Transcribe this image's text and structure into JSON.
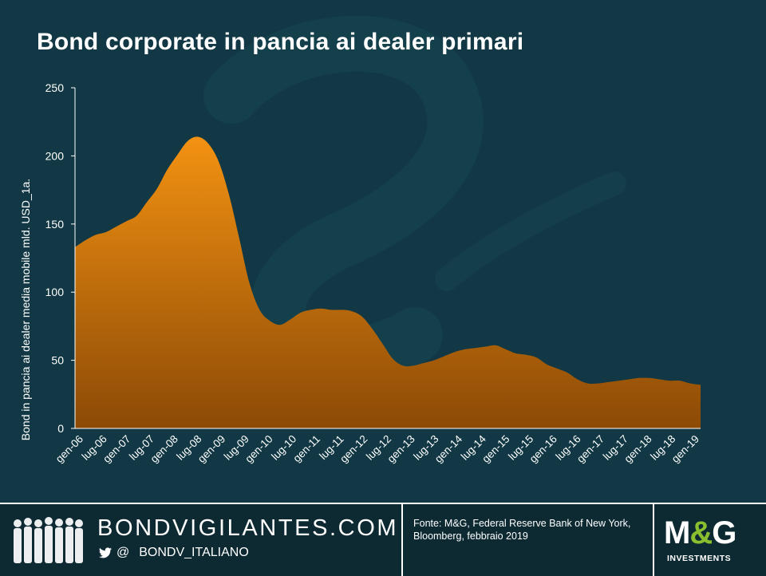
{
  "title": "Bond corporate in pancia ai dealer primari",
  "chart_data": {
    "type": "area",
    "title": "Bond corporate in pancia ai dealer primari",
    "ylabel": "Bond in pancia ai dealer media mobile mld. USD_1a.",
    "xlabel": "",
    "ylim": [
      0,
      250
    ],
    "yticks": [
      0,
      50,
      100,
      150,
      200,
      250
    ],
    "xticks": [
      "gen-06",
      "lug-06",
      "gen-07",
      "lug-07",
      "gen-08",
      "lug-08",
      "gen-09",
      "lug-09",
      "gen-10",
      "lug-10",
      "gen-11",
      "lug-11",
      "gen-12",
      "lug-12",
      "gen-13",
      "lug-13",
      "gen-14",
      "lug-14",
      "gen-15",
      "lug-15",
      "gen-16",
      "lug-16",
      "gen-17",
      "lug-17",
      "gen-18",
      "lug-18",
      "gen-19"
    ],
    "grid": false,
    "legend": "none",
    "series": [
      {
        "values": [
          133,
          138,
          142,
          144,
          148,
          152,
          156,
          166,
          176,
          190,
          201,
          211,
          214,
          209,
          196,
          172,
          140,
          107,
          87,
          79,
          76,
          80,
          85,
          87,
          88,
          87,
          87,
          86,
          82,
          73,
          62,
          51,
          46,
          46,
          48,
          50,
          53,
          56,
          58,
          59,
          60,
          61,
          58,
          55,
          54,
          52,
          47,
          44,
          41,
          36,
          33,
          33,
          34,
          35,
          36,
          37,
          37,
          36,
          35,
          35,
          33,
          32
        ]
      }
    ],
    "colors": {
      "area_top": "#f39212",
      "area_bottom": "#8c4a06",
      "axis": "#ffffff"
    }
  },
  "footer": {
    "brand": "BONDVIGILANTES.COM",
    "twitter_prefix": "@",
    "twitter_handle": "BONDV_ITALIANO",
    "source_line1": "Fonte: M&G, Federal Reserve  Bank of New York,",
    "source_line2": "Bloomberg, febbraio  2019",
    "logo_m": "M",
    "logo_amp": "&",
    "logo_g": "G",
    "logo_sub": "INVESTMENTS"
  }
}
